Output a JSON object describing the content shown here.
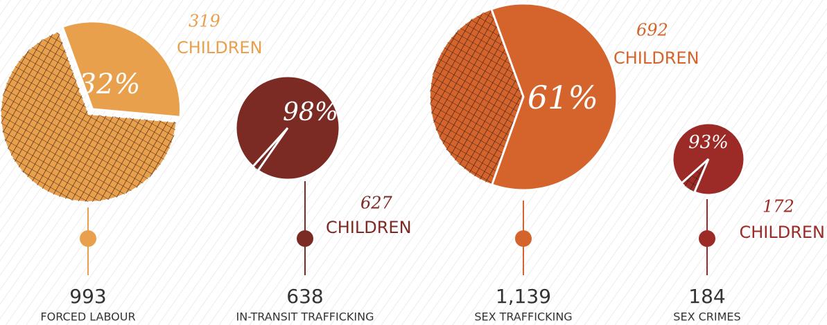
{
  "chart_data": [
    {
      "type": "pie",
      "title": "FORCED LABOUR",
      "total": 993,
      "share": 32,
      "share_label": "32%",
      "children": 319,
      "children_label": "CHILDREN",
      "color": "#e9a04c"
    },
    {
      "type": "pie",
      "title": "IN-TRANSIT TRAFFICKING",
      "total": 638,
      "share": 98,
      "share_label": "98%",
      "children": 627,
      "children_label": "CHILDREN",
      "color": "#7b2a24"
    },
    {
      "type": "pie",
      "title": "SEX TRAFFICKING",
      "total": 1139,
      "total_label": "1,139",
      "share": 61,
      "share_label": "61%",
      "children": 692,
      "children_label": "CHILDREN",
      "color": "#d4642c"
    },
    {
      "type": "pie",
      "title": "SEX CRIMES",
      "total": 184,
      "share": 93,
      "share_label": "93%",
      "children": 172,
      "children_label": "CHILDREN",
      "color": "#9c2a26"
    }
  ]
}
